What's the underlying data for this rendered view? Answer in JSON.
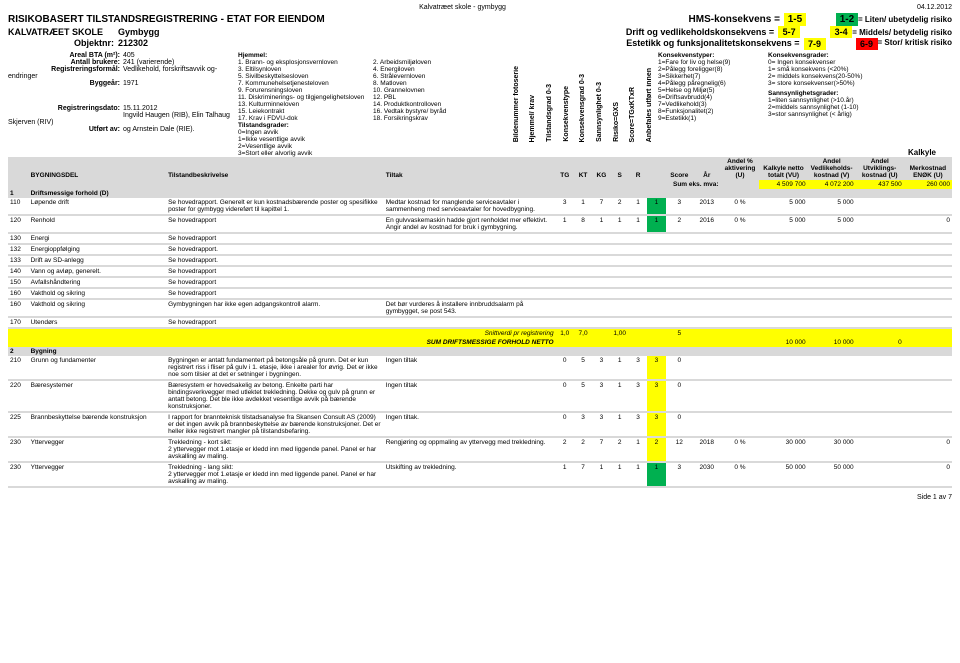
{
  "meta": {
    "doc_title": "Kalvatræet skole - gymbygg",
    "date": "04.12.2012",
    "page": "Side 1 av 7"
  },
  "header": {
    "title": "RISIKOBASERT TILSTANDSREGISTRERING - ETAT FOR EIENDOM",
    "school": "KALVATRÆET SKOLE",
    "building": "Gymbygg",
    "obj_label": "Objektnr:",
    "obj_value": "212302",
    "hms_label": "HMS-konsekvens =",
    "hms_val": "1-5",
    "drift_label": "Drift og vedlikeholdskonsekvens =",
    "drift_val": "5-7",
    "est_label": "Estetikk og funksjonalitetskonsekvens =",
    "est_val": "7-9",
    "risk1_box": "1-2",
    "risk1_txt": "= Liten/ ubetydelig risiko",
    "risk2_box": "3-4",
    "risk2_txt": "= Middels/ betydelig risiko",
    "risk3_box": "6-9",
    "risk3_txt": "= Stor/ kritisk risiko"
  },
  "info": {
    "areal_lbl": "Areal BTA (m²):",
    "areal_val": "405",
    "brukere_lbl": "Antall brukere:",
    "brukere_val": "241 (varierende)",
    "formal_lbl": "Registreringsformål:",
    "formal_val": "Vedlikehold, forskriftsavvik og- endringer",
    "byggar_lbl": "Byggeår:",
    "byggar_val": "1971",
    "regdato_lbl": "Registreringsdato:",
    "regdato_val": "15.11.2012",
    "regav_val": "Ingvild Haugen (RIB), Elin Talhaug Skjerven (RIV)",
    "utfort_lbl": "Utført av:",
    "utfort_val": "og Arnstein Dale (RIE)."
  },
  "hjemmel": {
    "title": "Hjemmel:",
    "items": [
      "1. Brann- og eksplosjonsvernloven",
      "2. Arbeidsmiljøloven",
      "3. Eltilsynloven",
      "4. Energiloven",
      "5. Sivilbeskyttelsesloven",
      "6. Strålevernloven",
      "7. Kommunehelsetjenesteloven",
      "8. Matloven",
      "9. Forurensningsloven",
      "10. Grannelovnen",
      "11. Diskriminerings- og tilgjengelighetsloven",
      "12. PBL",
      "13. Kulturminneloven",
      "14. Produktkontrolloven",
      "15. Leiekontrakt",
      "16. Vedtak bystyre/ byråd",
      "17. Krav i FDVU-dok",
      "18. Forsikringskrav"
    ]
  },
  "tilstand": {
    "title": "Tilstandsgrader:",
    "g0": "0=Ingen avvik",
    "g1": "1=Ikke vesentlige avvik",
    "g2": "2=Vesentlige avvik",
    "g3": "3=Stort eller alvorlig avvik"
  },
  "vert": [
    "Bildenummer fotoserie",
    "Hjemmel/ krav",
    "Tilstandsgrad 0-3",
    "Konsekvenstype",
    "Konsekvensgrad 0-3",
    "Sannsynlighet 0-3",
    "Risiko=GXS",
    "Score=TGxKTxR",
    "Anbefales utført innen"
  ],
  "konstyper": {
    "title": "Konsekvenstyper:",
    "items": [
      "1=Fare for liv og helse(9)",
      "2=Pålegg foreligger(8)",
      "3=Sikkerhet(7)",
      "4=Pålegg påregnelig(6)",
      "5=Helse og Miljø(5)",
      "6=Driftsavbrudd(4)",
      "7=Vedlikehold(3)",
      "8=Funksjonalitet(2)",
      "9=Estetikk(1)"
    ]
  },
  "konsgrader": {
    "title": "Konsekvensgrader:",
    "items": [
      "0= Ingen konsekvenser",
      "1= små konsekvens (<20%)",
      "2= middels konsekvens(20-50%)",
      "3= store konsekvenser(>50%)"
    ],
    "sann_title": "Sannsynlighetsgrader:",
    "sann": [
      "1=liten sannsynlighet (>10.år)",
      "2=middels sannsynlighet (1-10)",
      "3=stor sannsynlighet (< årlig)"
    ]
  },
  "kalkyle": "Kalkyle",
  "colhead": {
    "byg": "BYGNINGSDEL",
    "tilst": "Tilstandbeskrivelse",
    "tiltak": "Tiltak",
    "tg": "TG",
    "kt": "KT",
    "kg": "KG",
    "s": "S",
    "r": "R",
    "score": "Score",
    "ar": "År",
    "andel_akt": "Andel % aktivering (U)",
    "netto": "Kalkyle netto totalt (VU)",
    "vedl": "Andel Vedlikeholds-kostnad (V)",
    "utv": "Andel Utviklings-kostnad (U)",
    "merk": "Merkostnad ENØK (U)"
  },
  "sum_label": "Sum eks. mva:",
  "sum": {
    "netto": "4 509 700",
    "vedl": "4 072 200",
    "utv": "437 500",
    "merk": "260 000"
  },
  "sec1": {
    "num": "1",
    "title": "Driftsmessige forhold (D)",
    "rows": [
      {
        "id": "110",
        "name": "Løpende drift",
        "desc": "Se hovedrapport. Generelt er kun kostnadsbærende poster og spesifikke poster for gymbygg videreført til kapittel 1.",
        "tiltak": "Medtar kostnad for manglende serviceavtaler i sammenheng med serviceavtaler for hovedbygning.",
        "tg": "3",
        "kt": "1",
        "kg": "7",
        "s": "2",
        "r": "1",
        "rbox": "1",
        "score": "3",
        "ar": "2013",
        "pct": "0 %",
        "netto": "5 000",
        "vedl": "5 000",
        "utv": "",
        "merk": ""
      },
      {
        "id": "120",
        "name": "Renhold",
        "desc": "Se hovedrapport",
        "tiltak": "En gulvvaskemaskin hadde gjort renholdet mer effektivt. Angir andel av kostnad for bruk i gymbygning.",
        "tg": "1",
        "kt": "8",
        "kg": "1",
        "s": "1",
        "r": "1",
        "rbox": "1",
        "score": "2",
        "ar": "2016",
        "pct": "0 %",
        "netto": "5 000",
        "vedl": "5 000",
        "utv": "",
        "merk": "0"
      },
      {
        "id": "130",
        "name": "Energi",
        "desc": "Se hovedrapport",
        "tiltak": ""
      },
      {
        "id": "132",
        "name": "Energioppfølging",
        "desc": "Se hovedrapport.",
        "tiltak": ""
      },
      {
        "id": "133",
        "name": "Drift av SD-anlegg",
        "desc": "Se hovedrapport.",
        "tiltak": ""
      },
      {
        "id": "140",
        "name": "Vann og avløp, generelt.",
        "desc": "Se hovedrapport",
        "tiltak": ""
      },
      {
        "id": "150",
        "name": "Avfallshåndtering",
        "desc": "Se hovedrapport",
        "tiltak": ""
      },
      {
        "id": "160",
        "name": "Vakthold og sikring",
        "desc": "Se hovedrapport",
        "tiltak": ""
      },
      {
        "id": "160",
        "name": "Vakthold og sikring",
        "desc": "Gymbygningen har ikke egen adgangskontroll alarm.",
        "tiltak": "Det bør vurderes å installere innbruddsalarm på gymbygget, se post 543."
      },
      {
        "id": "170",
        "name": "Utendørs",
        "desc": "Se hovedrapport",
        "tiltak": ""
      }
    ],
    "snitt_label": "Snittverdi pr registrering",
    "snitt": {
      "a": "1,0",
      "b": "7,0",
      "c": "",
      "d": "1,00",
      "e": "",
      "score": "5"
    },
    "sum_label": "SUM DRIFTSMESSIGE FORHOLD NETTO",
    "sum_netto": "10 000",
    "sum_vedl": "10 000",
    "sum_utv": "0"
  },
  "sec2": {
    "num": "2",
    "title": "Bygning",
    "rows": [
      {
        "id": "210",
        "name": "Grunn og fundamenter",
        "desc": "Bygningen er antatt fundamentert på betongsåle på grunn. Det er kun registrert riss i fliser på gulv i 1. etasje, ikke i arealer for øvrig. Det er ikke noe som tilsier at det er setninger i bygningen.",
        "tiltak": "Ingen tiltak",
        "tg": "0",
        "kt": "5",
        "kg": "3",
        "s": "1",
        "r": "3",
        "rbox": "3",
        "score": "0",
        "ar": "",
        "pct": "",
        "netto": "",
        "vedl": "",
        "utv": "",
        "merk": ""
      },
      {
        "id": "220",
        "name": "Bæresystemer",
        "desc": "Bæresystem er hovedsakelig av betong. Enkelte parti har bindingsverkvegger med utlektet trekledning. Dekke og gulv på grunn er antatt betong. Det ble ikke avdekket vesentlige avvik på bærende konstruksjoner.",
        "tiltak": "Ingen tiltak",
        "tg": "0",
        "kt": "5",
        "kg": "3",
        "s": "1",
        "r": "3",
        "rbox": "3",
        "score": "0",
        "ar": "",
        "pct": "",
        "netto": "",
        "vedl": "",
        "utv": "",
        "merk": ""
      },
      {
        "id": "225",
        "name": "Brannbeskyttelse bærende konstruksjon",
        "desc": "I rapport for brannteknisk tilstadsanalyse fra Skansen Consult AS (2009) er det ingen avvik på brannbeskyttelse av bærende konstruksjoner. Det er heller ikke registrert mangler på tilstandsbefaring.",
        "tiltak": "Ingen tiltak.",
        "tg": "0",
        "kt": "3",
        "kg": "3",
        "s": "1",
        "r": "3",
        "rbox": "3",
        "score": "0",
        "ar": "",
        "pct": "",
        "netto": "",
        "vedl": "",
        "utv": "",
        "merk": ""
      },
      {
        "id": "230",
        "name": "Yttervegger",
        "desc": "Trekledning - kort sikt:\n2 yttervegger mot 1.etasje er kledd inn med liggende panel. Panel er har avskalling av maling.",
        "tiltak": "Rengjøring og oppmaling av yttervegg med trekledning.",
        "tg": "2",
        "kt": "2",
        "kg": "7",
        "s": "2",
        "r": "1",
        "rbox": "2",
        "score": "12",
        "ar": "2018",
        "pct": "0 %",
        "netto": "30 000",
        "vedl": "30 000",
        "utv": "",
        "merk": "0"
      },
      {
        "id": "230",
        "name": "Yttervegger",
        "desc": "Trekledning - lang sikt:\n2 yttervegger mot 1.etasje er kledd inn med liggende panel. Panel er har avskalling av maling.",
        "tiltak": "Utskifting av trekledning.",
        "tg": "1",
        "kt": "7",
        "kg": "1",
        "s": "1",
        "r": "1",
        "rbox": "1",
        "score": "3",
        "ar": "2030",
        "pct": "0 %",
        "netto": "50 000",
        "vedl": "50 000",
        "utv": "",
        "merk": "0"
      }
    ]
  }
}
